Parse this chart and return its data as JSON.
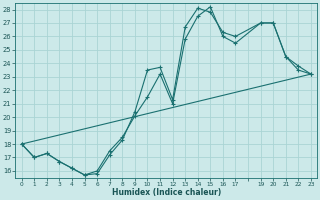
{
  "title": "",
  "xlabel": "Humidex (Indice chaleur)",
  "bg_color": "#cce9e9",
  "grid_color": "#aad4d4",
  "line_color": "#1a7070",
  "xlim": [
    -0.5,
    23.5
  ],
  "ylim": [
    15.5,
    28.5
  ],
  "xtick_positions": [
    0,
    1,
    2,
    3,
    4,
    5,
    6,
    7,
    8,
    9,
    10,
    11,
    12,
    13,
    14,
    15,
    16,
    17,
    18,
    19,
    20,
    21,
    22,
    23
  ],
  "xtick_labels": [
    "0",
    "1",
    "2",
    "3",
    "4",
    "5",
    "6",
    "7",
    "8",
    "9",
    "10",
    "11",
    "12",
    "13",
    "14",
    "15",
    "16",
    "17",
    "",
    "19",
    "20",
    "21",
    "22",
    "23"
  ],
  "yticks": [
    16,
    17,
    18,
    19,
    20,
    21,
    22,
    23,
    24,
    25,
    26,
    27,
    28
  ],
  "line1_x": [
    0,
    1,
    2,
    3,
    4,
    5,
    6,
    7,
    8,
    9,
    10,
    11,
    12,
    13,
    14,
    15,
    16,
    17,
    19,
    20,
    21,
    22,
    23
  ],
  "line1_y": [
    18.0,
    17.0,
    17.3,
    16.7,
    16.2,
    15.7,
    15.8,
    17.2,
    18.3,
    20.4,
    23.5,
    23.7,
    21.3,
    26.7,
    28.1,
    27.8,
    26.3,
    26.0,
    27.0,
    27.0,
    24.5,
    23.8,
    23.2
  ],
  "line2_x": [
    0,
    1,
    2,
    3,
    4,
    5,
    6,
    7,
    8,
    9,
    10,
    11,
    12,
    13,
    14,
    15,
    16,
    17,
    19,
    20,
    21,
    22,
    23
  ],
  "line2_y": [
    18.0,
    17.0,
    17.3,
    16.7,
    16.2,
    15.7,
    16.0,
    17.5,
    18.5,
    20.1,
    21.5,
    23.2,
    21.0,
    25.8,
    27.5,
    28.2,
    26.0,
    25.5,
    27.0,
    27.0,
    24.5,
    23.5,
    23.2
  ],
  "line3_x": [
    0,
    23
  ],
  "line3_y": [
    18.0,
    23.2
  ]
}
